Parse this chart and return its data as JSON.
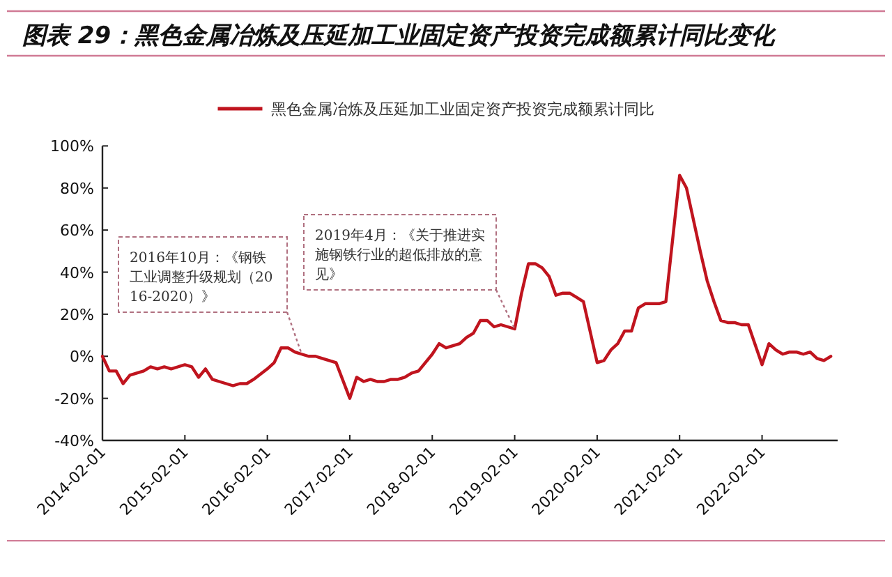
{
  "chart_data": {
    "type": "line",
    "title": "图表 29：黑色金属冶炼及压延加工业固定资产投资完成额累计同比变化",
    "legend": "top",
    "series": [
      {
        "name": "黑色金属冶炼及压延加工业固定资产投资完成额累计同比",
        "color": "#c0141e",
        "x": [
          "2014-02",
          "2014-03",
          "2014-04",
          "2014-05",
          "2014-06",
          "2014-07",
          "2014-08",
          "2014-09",
          "2014-10",
          "2014-11",
          "2014-12",
          "2015-02",
          "2015-03",
          "2015-04",
          "2015-05",
          "2015-06",
          "2015-07",
          "2015-08",
          "2015-09",
          "2015-10",
          "2015-11",
          "2015-12",
          "2016-02",
          "2016-03",
          "2016-04",
          "2016-05",
          "2016-06",
          "2016-07",
          "2016-08",
          "2016-09",
          "2016-10",
          "2016-11",
          "2016-12",
          "2017-02",
          "2017-03",
          "2017-04",
          "2017-05",
          "2017-06",
          "2017-07",
          "2017-08",
          "2017-09",
          "2017-10",
          "2017-11",
          "2017-12",
          "2018-02",
          "2018-03",
          "2018-04",
          "2018-05",
          "2018-06",
          "2018-07",
          "2018-08",
          "2018-09",
          "2018-10",
          "2018-11",
          "2018-12",
          "2019-02",
          "2019-03",
          "2019-04",
          "2019-05",
          "2019-06",
          "2019-07",
          "2019-08",
          "2019-09",
          "2019-10",
          "2019-11",
          "2019-12",
          "2020-02",
          "2020-03",
          "2020-04",
          "2020-05",
          "2020-06",
          "2020-07",
          "2020-08",
          "2020-09",
          "2020-10",
          "2020-11",
          "2020-12",
          "2021-02",
          "2021-03",
          "2021-04",
          "2021-05",
          "2021-06",
          "2021-07",
          "2021-08",
          "2021-09",
          "2021-10",
          "2021-11",
          "2021-12",
          "2022-02",
          "2022-03",
          "2022-04",
          "2022-05",
          "2022-06",
          "2022-07",
          "2022-08",
          "2022-09",
          "2022-10",
          "2022-11",
          "2022-12"
        ],
        "values": [
          0,
          -7,
          -7,
          -13,
          -9,
          -8,
          -7,
          -5,
          -6,
          -5,
          -6,
          -4,
          -5,
          -10,
          -6,
          -11,
          -12,
          -13,
          -14,
          -13,
          -13,
          -11,
          -6,
          -3,
          4,
          4,
          2,
          1,
          0,
          0,
          -1,
          -2,
          -3,
          -20,
          -10,
          -12,
          -11,
          -12,
          -12,
          -11,
          -11,
          -10,
          -8,
          -7,
          1,
          6,
          4,
          5,
          6,
          9,
          11,
          17,
          17,
          14,
          15,
          13,
          30,
          44,
          44,
          42,
          38,
          29,
          30,
          30,
          28,
          26,
          -3,
          -2,
          3,
          6,
          12,
          12,
          23,
          25,
          25,
          25,
          26,
          86,
          80,
          65,
          50,
          36,
          26,
          17,
          16,
          16,
          15,
          15,
          -4,
          6,
          3,
          1,
          2,
          2,
          1,
          2,
          -1,
          -2,
          0
        ]
      }
    ],
    "xlim": [
      "2014-02",
      "2023-01"
    ],
    "xticks": [
      "2014-02-01",
      "2015-02-01",
      "2016-02-01",
      "2017-02-01",
      "2018-02-01",
      "2019-02-01",
      "2020-02-01",
      "2021-02-01",
      "2022-02-01"
    ],
    "ylim": [
      -40,
      100
    ],
    "yticks": [
      {
        "value": -40,
        "label": "-40%"
      },
      {
        "value": -20,
        "label": "-20%"
      },
      {
        "value": 0,
        "label": "0%"
      },
      {
        "value": 20,
        "label": "20%"
      },
      {
        "value": 40,
        "label": "40%"
      },
      {
        "value": 60,
        "label": "60%"
      },
      {
        "value": 80,
        "label": "80%"
      },
      {
        "value": 100,
        "label": "100%"
      }
    ],
    "annotations": [
      {
        "text": "2016年10月：《钢铁工业调整升级规划（2016-2020）》",
        "x": "2016-07",
        "y": 1
      },
      {
        "text": "2019年4月：《关于推进实施钢铁行业的超低排放的意见》",
        "x": "2019-02",
        "y": 13
      }
    ]
  }
}
